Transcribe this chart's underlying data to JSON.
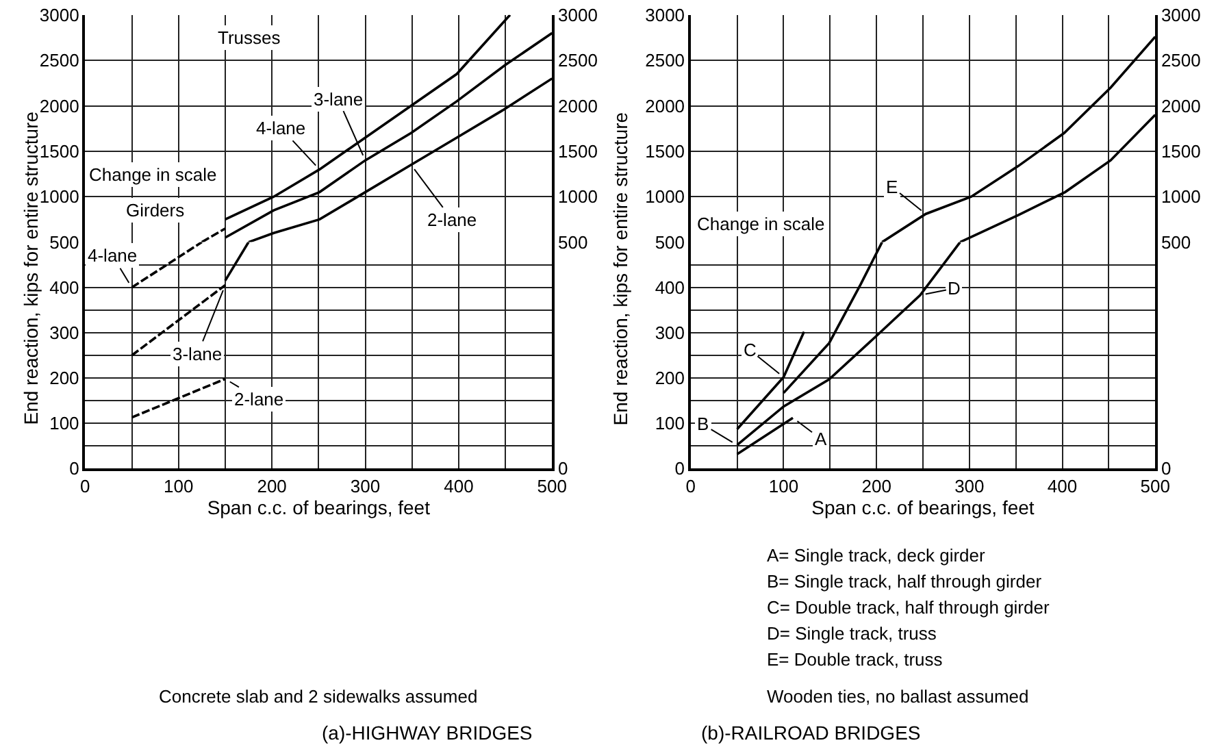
{
  "chart_data": [
    {
      "type": "line",
      "xlim": [
        0,
        500
      ],
      "ylim": [
        500,
        3000
      ],
      "y2lim": [
        500,
        3000
      ],
      "tick_labels": "y",
      "grid": true,
      "line_style": "solid",
      "marker": "none",
      "xticks": [
        0,
        {
          "value": 50,
          "label": null
        },
        100,
        {
          "value": 150,
          "label": null
        },
        200,
        {
          "value": 250,
          "label": null
        },
        300,
        {
          "value": 350,
          "label": null
        },
        400,
        {
          "value": 450,
          "label": null
        },
        500
      ],
      "yticks": [
        1000,
        1500,
        2000,
        2500,
        3000
      ],
      "y2ticks": [
        1000,
        1500,
        2000,
        2500,
        3000
      ],
      "series": [
        {
          "color": "#000000",
          "x": [
            150,
            202,
            251,
            300,
            349,
            398,
            455
          ],
          "values": [
            750,
            1000,
            1300,
            1650,
            2000,
            2350,
            3000
          ]
        },
        {
          "color": "#000000",
          "x": [
            150,
            202,
            251,
            300,
            349,
            398,
            450,
            500
          ],
          "values": [
            550,
            850,
            1050,
            1400,
            1700,
            2050,
            2450,
            2800
          ]
        },
        {
          "color": "#000000",
          "x": [
            175,
            202,
            251,
            300,
            349,
            398,
            447,
            500
          ],
          "values": [
            500,
            600,
            750,
            1050,
            1350,
            1650,
            1950,
            2300
          ]
        },
        {
          "color": "#000000",
          "line_style": "dashed",
          "x": [
            125,
            150
          ],
          "values": [
            500,
            650
          ]
        }
      ],
      "annotations": [
        "Trusses",
        "Girders",
        "Change in scale",
        {
          "text": "4-lane",
          "x": 251,
          "y": 1300
        },
        {
          "text": "3-lane",
          "x": 300,
          "y": 1400
        },
        {
          "text": "2-lane",
          "x": 349,
          "y": 1350
        }
      ]
    },
    {
      "type": "line",
      "xlim": [
        0,
        500
      ],
      "ylim": [
        0,
        500
      ],
      "y2lim": [
        0,
        500
      ],
      "grid": true,
      "line_style": "solid",
      "marker": "none",
      "xlabel": "Span c.c. of bearings, feet",
      "ylabel": "End reaction, kips for entire structure",
      "title": "(a)-HIGHWAY BRIDGES",
      "xticks": [
        0,
        {
          "value": 50,
          "label": null
        },
        100,
        {
          "value": 150,
          "label": null
        },
        200,
        {
          "value": 250,
          "label": null
        },
        300,
        {
          "value": 350,
          "label": null
        },
        400,
        {
          "value": 450,
          "label": null
        },
        500
      ],
      "yticks": [
        0,
        {
          "value": 50,
          "label": null
        },
        100,
        {
          "value": 150,
          "label": null
        },
        200,
        {
          "value": 250,
          "label": null
        },
        300,
        {
          "value": 350,
          "label": null
        },
        400,
        {
          "value": 450,
          "label": null
        },
        500
      ],
      "y2ticks": [
        0,
        500
      ],
      "series": [
        {
          "color": "#000000",
          "line_style": "dashed",
          "x": [
            50,
            150
          ],
          "values": [
            113,
            198
          ]
        },
        {
          "color": "#000000",
          "line_style": "dashed",
          "x": [
            50,
            150
          ],
          "values": [
            250,
            405
          ]
        },
        {
          "color": "#000000",
          "x": [
            150,
            175
          ],
          "values": [
            415,
            500
          ]
        },
        {
          "color": "#000000",
          "line_style": "dashed",
          "x": [
            50,
            125
          ],
          "values": [
            400,
            500
          ]
        }
      ],
      "annotations": [
        {
          "text": "4-lane",
          "x": 50,
          "y": 400
        },
        {
          "text": "3-lane",
          "x": 150,
          "y": 405
        },
        {
          "text": "2-lane",
          "x": 150,
          "y": 198
        },
        "Concrete slab and 2 sidewalks assumed"
      ]
    },
    {
      "type": "line",
      "xlim": [
        0,
        500
      ],
      "ylim": [
        500,
        3000
      ],
      "y2lim": [
        500,
        3000
      ],
      "tick_labels": "y",
      "grid": true,
      "line_style": "solid",
      "marker": "none",
      "xticks": [
        0,
        {
          "value": 50,
          "label": null
        },
        100,
        {
          "value": 150,
          "label": null
        },
        200,
        {
          "value": 250,
          "label": null
        },
        300,
        {
          "value": 350,
          "label": null
        },
        400,
        {
          "value": 450,
          "label": null
        },
        500
      ],
      "yticks": [
        1000,
        1500,
        2000,
        2500,
        3000
      ],
      "y2ticks": [
        1000,
        1500,
        2000,
        2500,
        3000
      ],
      "series": [
        {
          "color": "#000000",
          "x": [
            290,
            353,
            403,
            452,
            500
          ],
          "values": [
            500,
            800,
            1050,
            1400,
            1900
          ]
        },
        {
          "color": "#000000",
          "x": [
            206,
            253,
            302,
            353,
            402,
            452,
            500
          ],
          "values": [
            500,
            810,
            1000,
            1340,
            1700,
            2200,
            2760
          ]
        }
      ],
      "annotations": [
        "Change in scale",
        {
          "text": "E",
          "x": 253,
          "y": 810
        }
      ]
    },
    {
      "type": "line",
      "xlim": [
        0,
        500
      ],
      "ylim": [
        0,
        500
      ],
      "y2lim": [
        0,
        500
      ],
      "grid": true,
      "line_style": "solid",
      "marker": "none",
      "xlabel": "Span c.c. of bearings, feet",
      "ylabel": "End reaction, kips for entire structure",
      "title": "(b)-RAILROAD BRIDGES",
      "xticks": [
        0,
        {
          "value": 50,
          "label": null
        },
        100,
        {
          "value": 150,
          "label": null
        },
        200,
        {
          "value": 250,
          "label": null
        },
        300,
        {
          "value": 350,
          "label": null
        },
        400,
        {
          "value": 450,
          "label": null
        },
        500
      ],
      "yticks": [
        0,
        {
          "value": 50,
          "label": null
        },
        100,
        {
          "value": 150,
          "label": null
        },
        200,
        {
          "value": 250,
          "label": null
        },
        300,
        {
          "value": 350,
          "label": null
        },
        400,
        {
          "value": 450,
          "label": null
        },
        500
      ],
      "y2ticks": [
        0,
        500
      ],
      "series": [
        {
          "color": "#000000",
          "x": [
            50,
            110
          ],
          "values": [
            32,
            112
          ]
        },
        {
          "color": "#000000",
          "x": [
            50,
            100,
            122
          ],
          "values": [
            87,
            202,
            302
          ]
        },
        {
          "color": "#000000",
          "x": [
            50,
            100,
            149,
            200,
            247,
            290
          ],
          "values": [
            52,
            137,
            197,
            293,
            383,
            500
          ]
        },
        {
          "color": "#000000",
          "x": [
            100,
            149,
            183,
            206
          ],
          "values": [
            167,
            277,
            407,
            500
          ]
        }
      ],
      "annotations": [
        {
          "text": "A",
          "x": 110,
          "y": 112
        },
        {
          "text": "B",
          "x": 50,
          "y": 52
        },
        {
          "text": "C",
          "x": 100,
          "y": 202
        },
        {
          "text": "D",
          "x": 247,
          "y": 383
        },
        "A= Single track, deck girder",
        "B= Single track, half through girder",
        "C= Double track, half through girder",
        "D= Single track, truss",
        "E= Double track, truss",
        "Wooden ties, no ballast assumed"
      ]
    }
  ]
}
